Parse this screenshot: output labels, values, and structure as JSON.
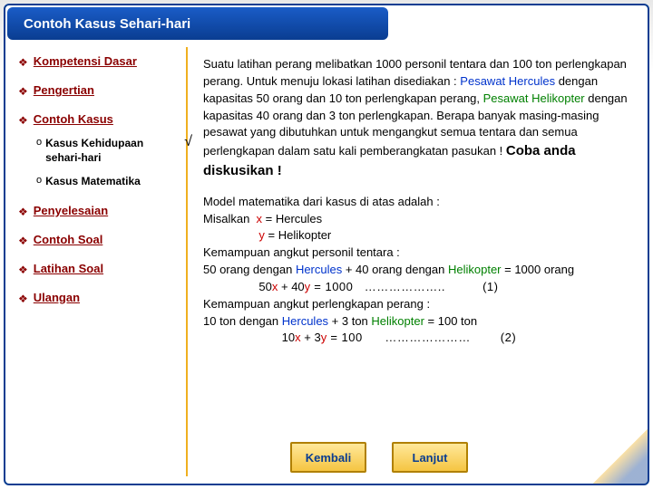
{
  "colors": {
    "brand_blue": "#0a3d91",
    "brand_blue_light": "#1a5cc7",
    "accent_gold": "#f0b020",
    "text_dark_red": "#8a0000",
    "hl_red": "#cc0000",
    "hl_blue": "#0033cc",
    "hl_green": "#008000",
    "text_black": "#000000",
    "btn_border": "#b08000",
    "btn_fill_top": "#ffe89a",
    "btn_fill_bottom": "#f5c542"
  },
  "header": {
    "title": "Contoh Kasus  Sehari-hari"
  },
  "sidebar": {
    "items": [
      {
        "label": "Kompetensi Dasar",
        "sub": []
      },
      {
        "label": "Pengertian",
        "sub": []
      },
      {
        "label": "Contoh Kasus",
        "sub": [
          {
            "label": "Kasus Kehidupaan sehari-hari",
            "checked": true
          },
          {
            "label": "Kasus Matematika",
            "checked": false
          }
        ]
      },
      {
        "label": "Penyelesaian",
        "sub": []
      },
      {
        "label": "Contoh Soal",
        "sub": []
      },
      {
        "label": "Latihan Soal",
        "sub": []
      },
      {
        "label": "Ulangan",
        "sub": []
      }
    ]
  },
  "content": {
    "para1_parts": {
      "t0": "Suatu latihan perang melibatkan 1000 personil tentara dan 100 ton perlengkapan perang. Untuk menuju lokasi latihan disediakan : ",
      "t1": "Pesawat Hercules",
      "t2": " dengan kapasitas 50 orang dan 10 ton perlengkapan perang, ",
      "t3": "Pesawat Helikopter",
      "t4": " dengan kapasitas 40 orang dan 3 ton perlengkapan. Berapa banyak masing-masing pesawat yang dibutuhkan untuk mengangkut semua tentara dan semua perlengkapan dalam satu kali pemberangkatan pasukan ! ",
      "t5": "Coba anda diskusikan !"
    },
    "para2": {
      "l0": "Model matematika dari kasus di atas adalah :",
      "l1a": "Misalkan  ",
      "l1b": "x",
      "l1c": " = Hercules",
      "l2a": "                 ",
      "l2b": "y",
      "l2c": " = Helikopter",
      "l3": "Kemampuan angkut personil tentara :",
      "l4a": "50 orang dengan ",
      "l4b": "Hercules",
      "l4c": " + 40 orang dengan ",
      "l4d": "Helikopter",
      "l4e": " = 1000  orang",
      "l5a": "                 50",
      "l5b": "x",
      "l5c": " + 40",
      "l5d": "y",
      "l5e": " = 1000   ………………..          (1)",
      "l6": "Kemampuan angkut perlengkapan perang :",
      "l7a": "10 ton dengan ",
      "l7b": "Hercules",
      "l7c": " + 3 ton ",
      "l7d": "Helikopter",
      "l7e": " = 100 ton",
      "l8a": "                        10",
      "l8b": "x",
      "l8c": " + 3",
      "l8d": "y",
      "l8e": " = 100      …………………        (2)"
    }
  },
  "buttons": {
    "back": "Kembali",
    "next": "Lanjut"
  }
}
